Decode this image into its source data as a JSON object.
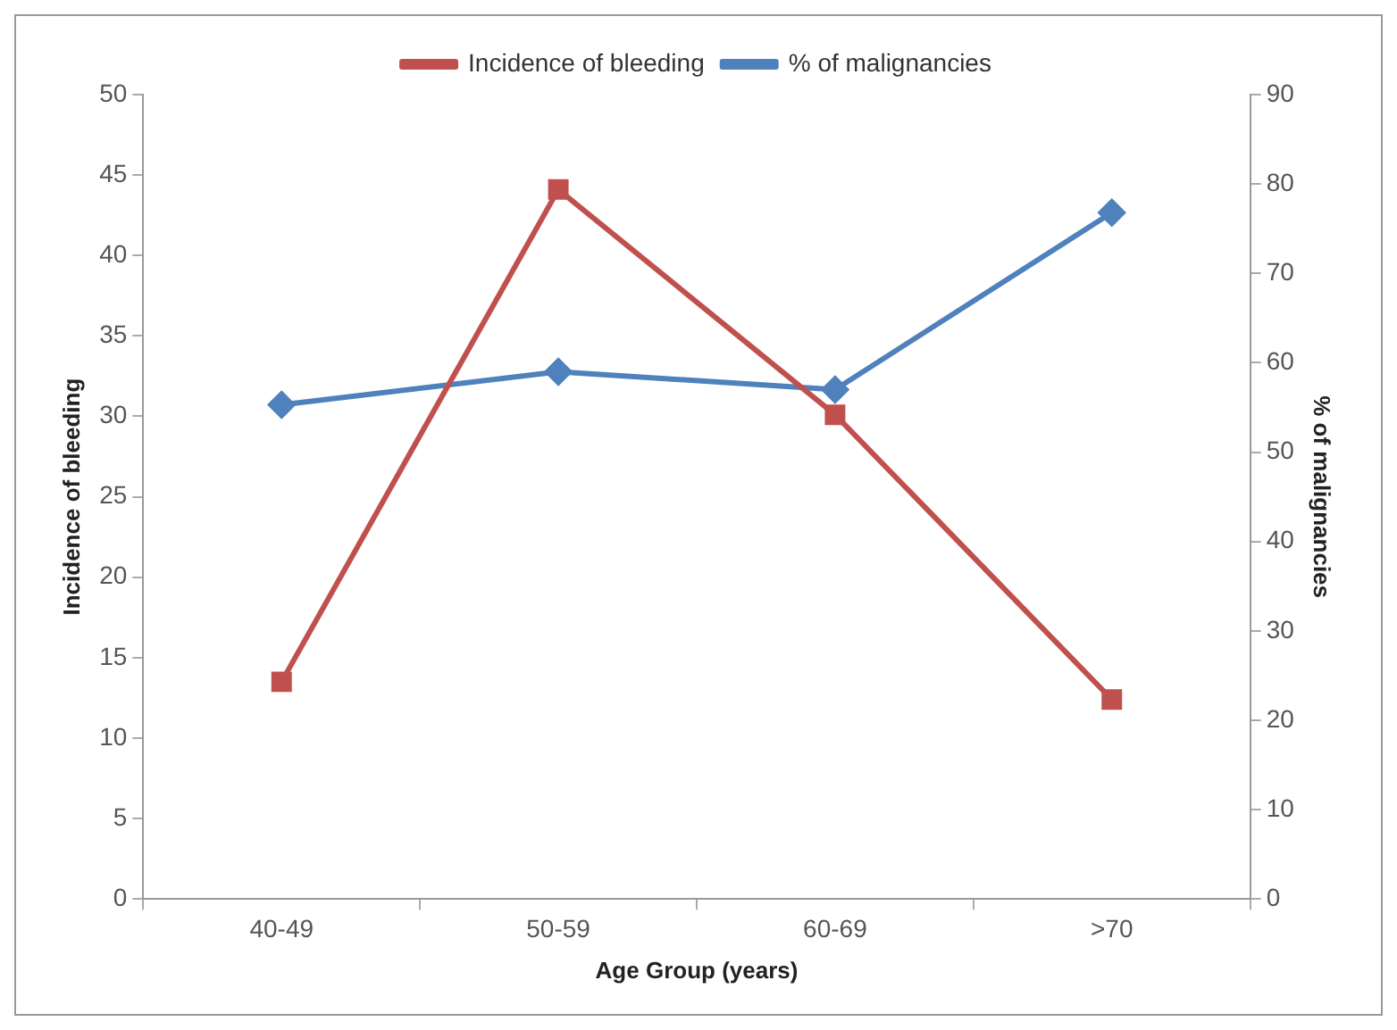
{
  "chart_data": {
    "type": "line",
    "xlabel": "Age Group (years)",
    "ylabel": "Incidence of bleeding",
    "y2label": "% of malignancies",
    "categories": [
      "40-49",
      "50-59",
      "60-69",
      ">70"
    ],
    "series": [
      {
        "name": "Incidence of bleeding",
        "color": "#c0504d",
        "marker": "square",
        "values": [
          13.5,
          44.1,
          30.1,
          12.4
        ]
      },
      {
        "name": "% of malignancies",
        "color": "#4f81bd",
        "marker": "diamond",
        "axis": "y2",
        "values": [
          55.3,
          59.0,
          57.0,
          76.8
        ]
      }
    ],
    "ylim": [
      0,
      50
    ],
    "yticks": [
      0,
      5,
      10,
      15,
      20,
      25,
      30,
      35,
      40,
      45,
      50
    ],
    "y2lim": [
      0,
      90
    ],
    "y2ticks": [
      0,
      10,
      20,
      30,
      40,
      50,
      60,
      70,
      80,
      90
    ],
    "grid": false,
    "legend": "top",
    "line_style": "solid"
  }
}
